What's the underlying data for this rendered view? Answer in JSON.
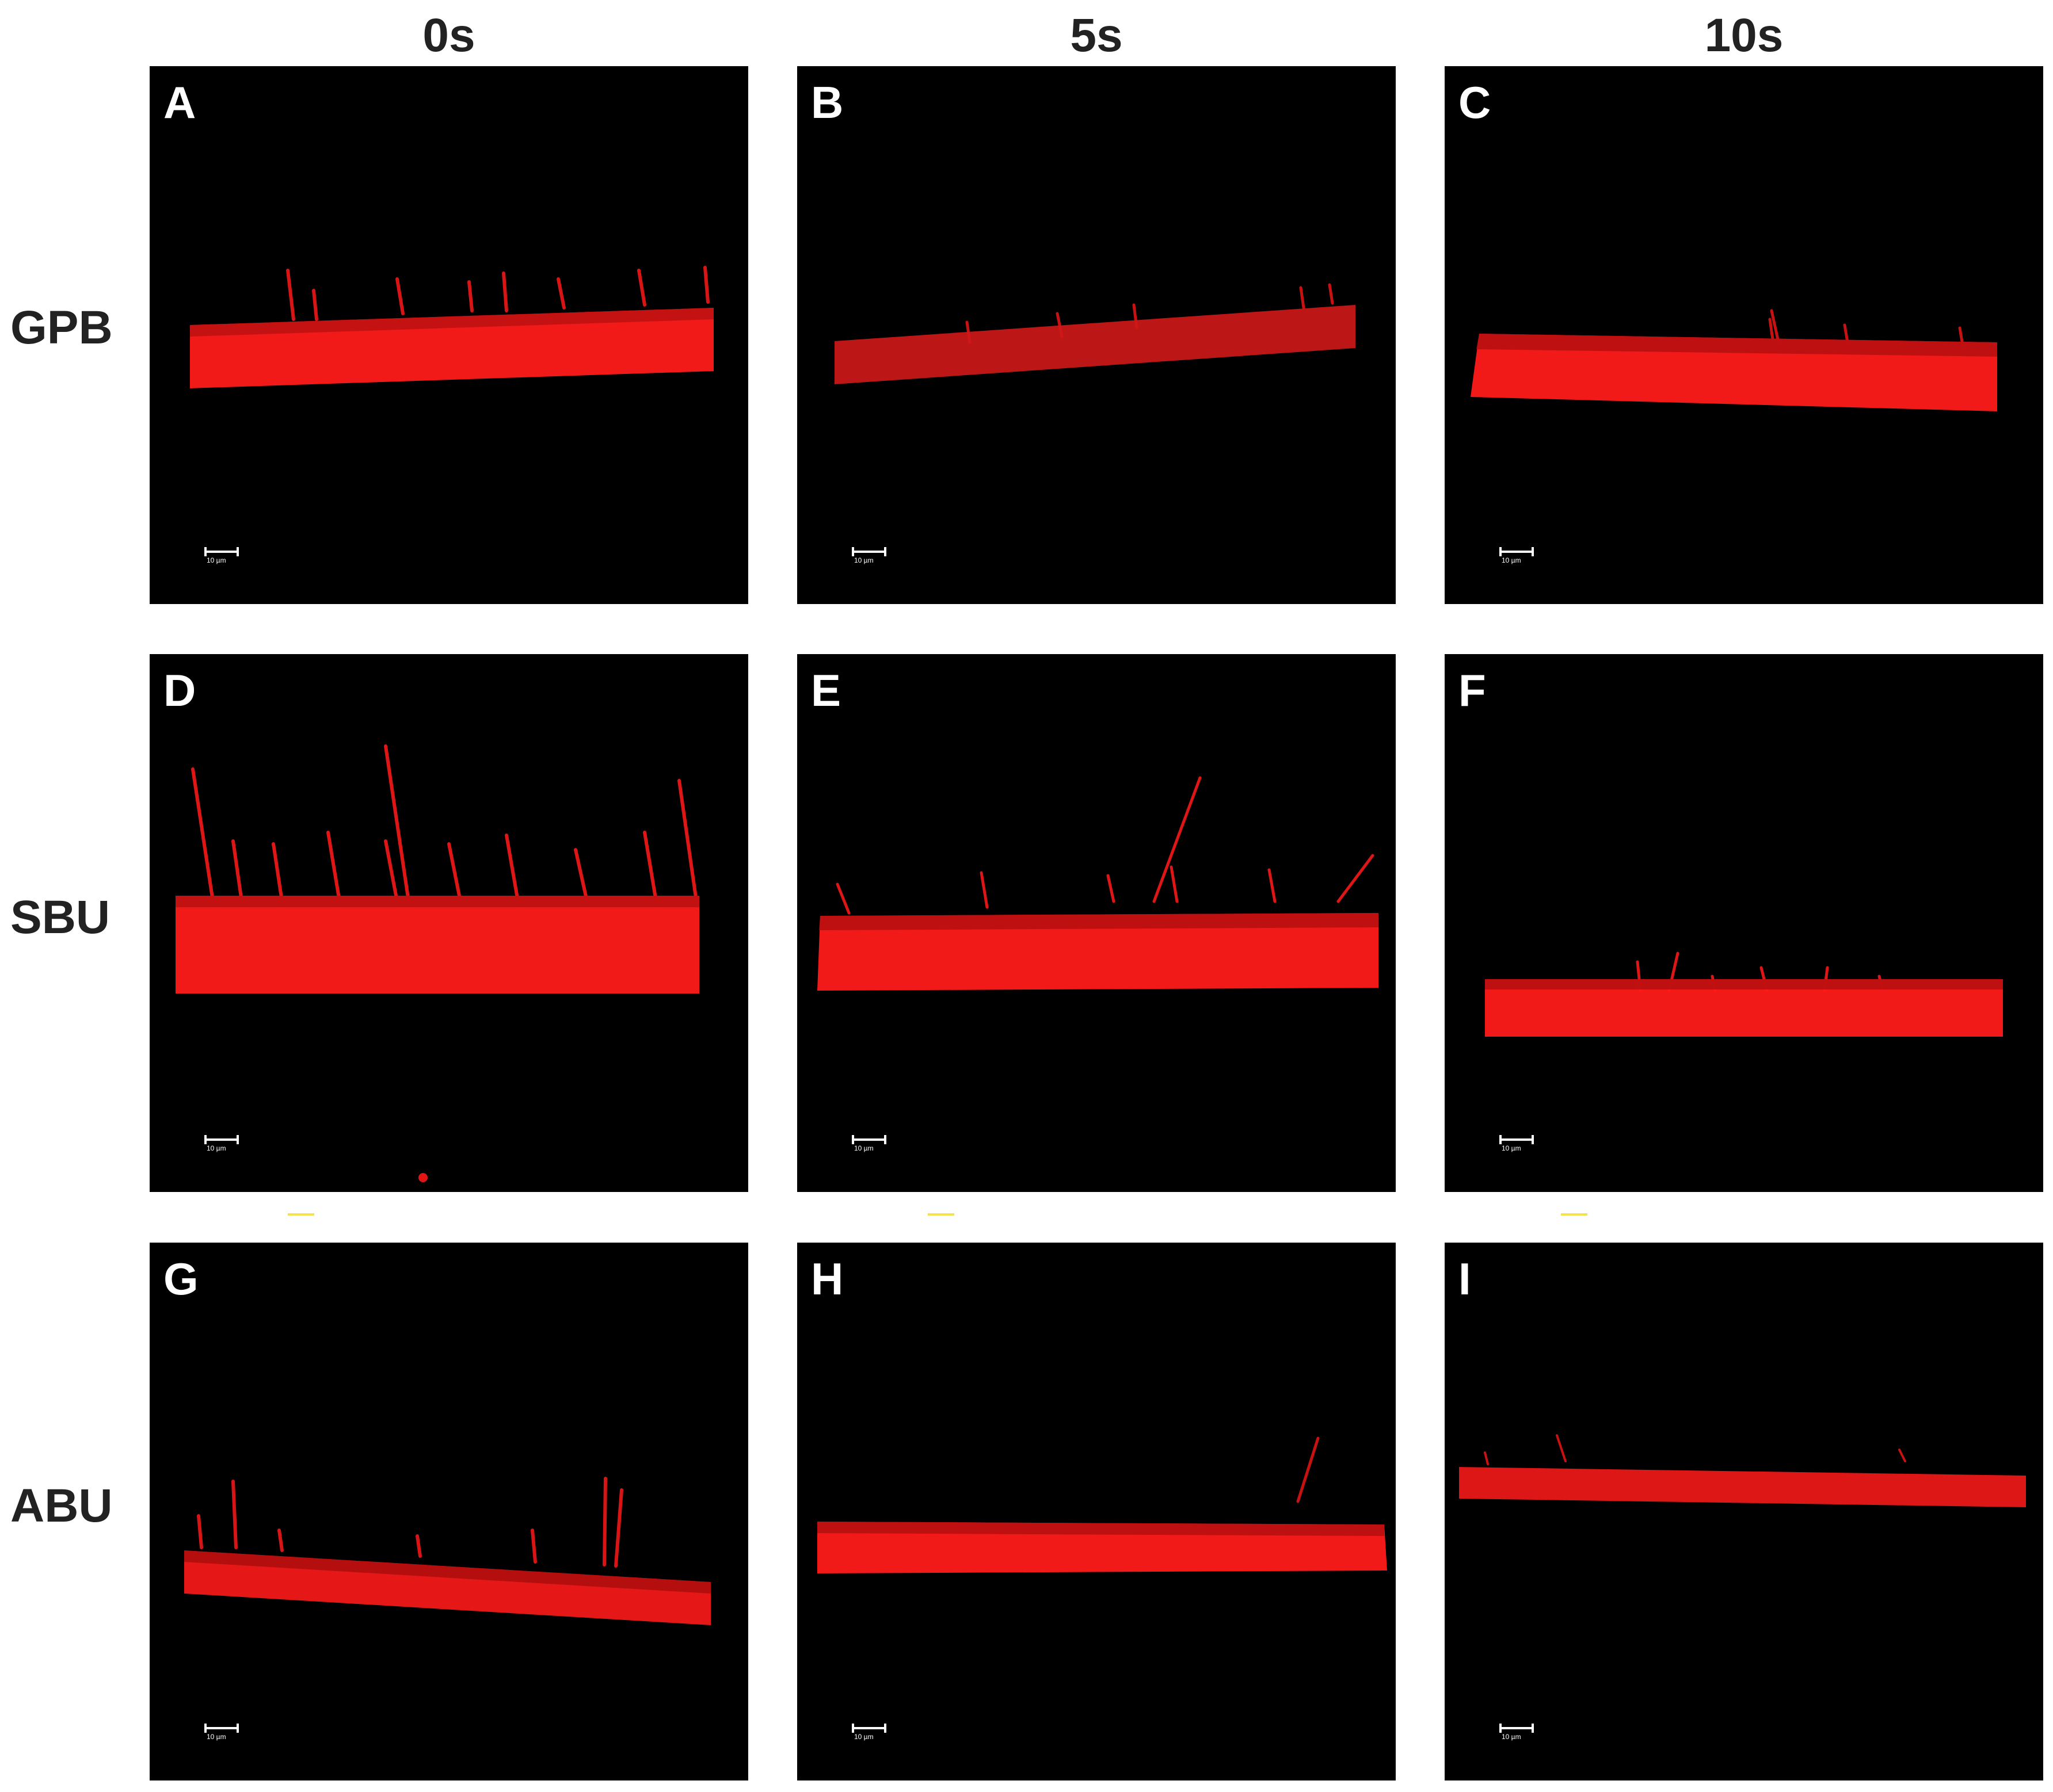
{
  "column_labels": [
    "0s",
    "5s",
    "10s"
  ],
  "row_labels": [
    "GPB",
    "SBU",
    "ABU"
  ],
  "panels": [
    {
      "letter": "A",
      "scalebar": "10 µm"
    },
    {
      "letter": "B",
      "scalebar": "10 µm"
    },
    {
      "letter": "C",
      "scalebar": "10 µm"
    },
    {
      "letter": "D",
      "scalebar": "10 µm"
    },
    {
      "letter": "E",
      "scalebar": "10 µm"
    },
    {
      "letter": "F",
      "scalebar": "10 µm"
    },
    {
      "letter": "G",
      "scalebar": "10 µm"
    },
    {
      "letter": "H",
      "scalebar": "10 µm"
    },
    {
      "letter": "I",
      "scalebar": "10 µm"
    }
  ],
  "colors": {
    "background": "#000000",
    "fluorescence": "#ff1a1a",
    "text": "#222222",
    "marker": "#f5e24a"
  }
}
